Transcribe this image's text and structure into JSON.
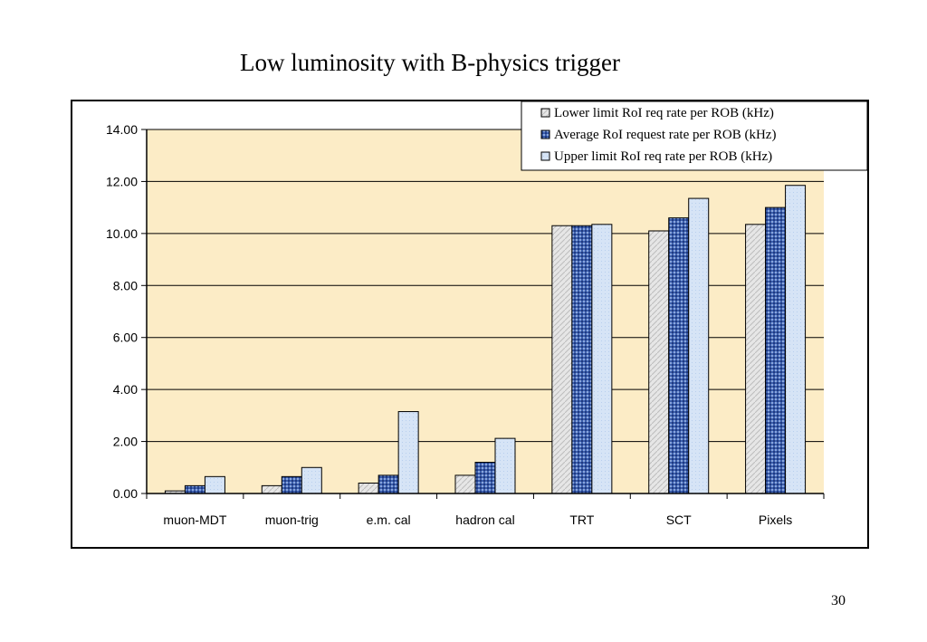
{
  "slide": {
    "title": "Low luminosity with B-physics trigger",
    "page_number": "30"
  },
  "chart_data": {
    "type": "bar",
    "title": "",
    "xlabel": "",
    "ylabel": "",
    "categories": [
      "muon-MDT",
      "muon-trig",
      "e.m. cal",
      "hadron cal",
      "TRT",
      "SCT",
      "Pixels"
    ],
    "series": [
      {
        "name": "Lower limit RoI req rate per ROB (kHz)",
        "values": [
          0.1,
          0.3,
          0.4,
          0.7,
          10.3,
          10.1,
          10.35
        ],
        "color": "#dcdcdc"
      },
      {
        "name": "Average RoI request rate per ROB (kHz)",
        "values": [
          0.3,
          0.65,
          0.7,
          1.2,
          10.3,
          10.6,
          11.0
        ],
        "color": "#3f62b3"
      },
      {
        "name": "Upper limit RoI req rate per ROB (kHz)",
        "values": [
          0.65,
          1.0,
          3.15,
          2.12,
          10.35,
          11.35,
          11.85
        ],
        "color": "#cfe0f5"
      }
    ],
    "ylim": [
      0,
      14
    ],
    "ytick_labels": [
      "0.00",
      "2.00",
      "4.00",
      "6.00",
      "8.00",
      "10.00",
      "12.00",
      "14.00"
    ],
    "grid": true,
    "legend_position": "top-right",
    "plot_background": "#fcecc6"
  }
}
